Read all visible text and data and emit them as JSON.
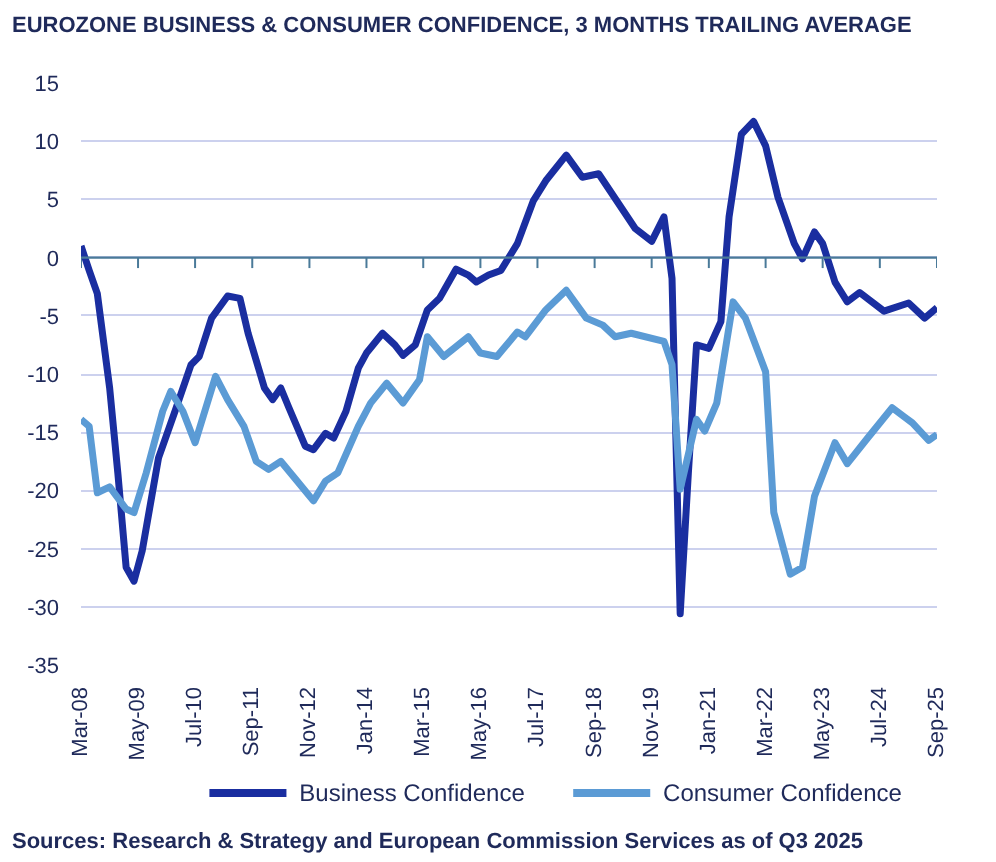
{
  "chart_data": {
    "type": "line",
    "title": "EUROZONE BUSINESS & CONSUMER CONFIDENCE, 3 MONTHS TRAILING AVERAGE",
    "series": [
      {
        "name": "Business Confidence",
        "color": "#1a2ea0",
        "x": [
          "2008-03",
          "2008-05",
          "2008-07",
          "2008-10",
          "2008-12",
          "2009-02",
          "2009-04",
          "2009-06",
          "2009-10",
          "2010-02",
          "2010-06",
          "2010-08",
          "2010-11",
          "2011-03",
          "2011-06",
          "2011-08",
          "2011-12",
          "2012-02",
          "2012-04",
          "2012-06",
          "2012-10",
          "2012-12",
          "2013-03",
          "2013-05",
          "2013-08",
          "2013-11",
          "2014-01",
          "2014-05",
          "2014-08",
          "2014-10",
          "2015-01",
          "2015-04",
          "2015-07",
          "2015-11",
          "2016-02",
          "2016-04",
          "2016-07",
          "2016-10",
          "2017-02",
          "2017-06",
          "2017-09",
          "2018-02",
          "2018-06",
          "2018-10",
          "2019-03",
          "2019-07",
          "2019-11",
          "2020-02",
          "2020-04",
          "2020-06",
          "2020-08",
          "2020-10",
          "2021-01",
          "2021-04",
          "2021-06",
          "2021-09",
          "2021-12",
          "2022-03",
          "2022-06",
          "2022-10",
          "2022-12",
          "2023-03",
          "2023-05",
          "2023-08",
          "2023-11",
          "2024-02",
          "2024-08",
          "2025-02",
          "2025-06",
          "2025-09"
        ],
        "values": [
          1.0,
          -1.1,
          -3.1,
          -11.2,
          -18.5,
          -26.6,
          -27.8,
          -25.2,
          -17.2,
          -13.2,
          -9.2,
          -8.5,
          -5.2,
          -3.3,
          -3.5,
          -6.5,
          -11.2,
          -12.2,
          -11.2,
          -12.9,
          -16.2,
          -16.5,
          -15.1,
          -15.5,
          -13.2,
          -9.5,
          -8.2,
          -6.5,
          -7.5,
          -8.4,
          -7.5,
          -4.5,
          -3.5,
          -1.0,
          -1.5,
          -2.1,
          -1.5,
          -1.1,
          1.2,
          4.9,
          6.6,
          8.8,
          6.9,
          7.2,
          4.6,
          2.5,
          1.4,
          3.5,
          -1.8,
          -30.6,
          -18.5,
          -7.5,
          -7.8,
          -5.5,
          3.5,
          10.6,
          11.7,
          9.6,
          5.2,
          1.2,
          -0.1,
          2.2,
          1.2,
          -2.1,
          -3.8,
          -3.0,
          -4.6,
          -3.9,
          -5.2,
          -4.3
        ]
      },
      {
        "name": "Consumer Confidence",
        "color": "#5b9bd5",
        "x": [
          "2008-03",
          "2008-05",
          "2008-07",
          "2008-10",
          "2009-02",
          "2009-04",
          "2009-07",
          "2009-11",
          "2010-01",
          "2010-04",
          "2010-07",
          "2010-12",
          "2011-03",
          "2011-07",
          "2011-10",
          "2012-01",
          "2012-04",
          "2012-08",
          "2012-12",
          "2013-03",
          "2013-06",
          "2013-11",
          "2014-02",
          "2014-06",
          "2014-10",
          "2015-02",
          "2015-04",
          "2015-08",
          "2016-02",
          "2016-05",
          "2016-09",
          "2017-02",
          "2017-04",
          "2017-09",
          "2018-02",
          "2018-07",
          "2018-11",
          "2019-02",
          "2019-06",
          "2020-02",
          "2020-04",
          "2020-06",
          "2020-10",
          "2020-12",
          "2021-03",
          "2021-07",
          "2021-10",
          "2022-03",
          "2022-05",
          "2022-09",
          "2022-12",
          "2023-03",
          "2023-08",
          "2023-11",
          "2024-04",
          "2024-10",
          "2025-01",
          "2025-03",
          "2025-07",
          "2025-09"
        ],
        "values": [
          -13.9,
          -14.5,
          -20.2,
          -19.7,
          -21.6,
          -21.9,
          -18.5,
          -13.2,
          -11.5,
          -13.2,
          -15.9,
          -10.2,
          -12.2,
          -14.5,
          -17.5,
          -18.2,
          -17.5,
          -19.2,
          -20.9,
          -19.2,
          -18.5,
          -14.5,
          -12.5,
          -10.8,
          -12.5,
          -10.5,
          -6.8,
          -8.5,
          -6.8,
          -8.2,
          -8.5,
          -6.4,
          -6.8,
          -4.5,
          -2.8,
          -5.2,
          -5.8,
          -6.8,
          -6.5,
          -7.2,
          -9.2,
          -19.9,
          -13.9,
          -14.9,
          -12.5,
          -3.8,
          -5.2,
          -9.8,
          -21.9,
          -27.2,
          -26.6,
          -20.5,
          -15.9,
          -17.7,
          -15.5,
          -12.9,
          -13.7,
          -14.2,
          -15.7,
          -15.2
        ]
      }
    ],
    "xlim": [
      "2008-03",
      "2025-09"
    ],
    "xticks": [
      {
        "value": "2008-03",
        "label": "Mar-08"
      },
      {
        "value": "2009-05",
        "label": "May-09"
      },
      {
        "value": "2010-07",
        "label": "Jul-10"
      },
      {
        "value": "2011-09",
        "label": "Sep-11"
      },
      {
        "value": "2012-11",
        "label": "Nov-12"
      },
      {
        "value": "2014-01",
        "label": "Jan-14"
      },
      {
        "value": "2015-03",
        "label": "Mar-15"
      },
      {
        "value": "2016-05",
        "label": "May-16"
      },
      {
        "value": "2017-07",
        "label": "Jul-17"
      },
      {
        "value": "2018-09",
        "label": "Sep-18"
      },
      {
        "value": "2019-11",
        "label": "Nov-19"
      },
      {
        "value": "2021-01",
        "label": "Jan-21"
      },
      {
        "value": "2022-03",
        "label": "Mar-22"
      },
      {
        "value": "2023-05",
        "label": "May-23"
      },
      {
        "value": "2024-07",
        "label": "Jul-24"
      },
      {
        "value": "2025-09",
        "label": "Sep-25"
      }
    ],
    "ylim": [
      -35,
      15
    ],
    "yticks": [
      -35,
      -30,
      -25,
      -20,
      -15,
      -10,
      -5,
      0,
      5,
      10,
      15
    ],
    "ref_lines": [
      {
        "axis": "y",
        "value": 0,
        "color": "#4a7a99"
      }
    ],
    "grid": "y",
    "legend": "bottom",
    "marker": "none",
    "line_style": "solid",
    "annotations": [
      "Sources: Research & Strategy and European Commission Services as of Q3 2025"
    ]
  }
}
